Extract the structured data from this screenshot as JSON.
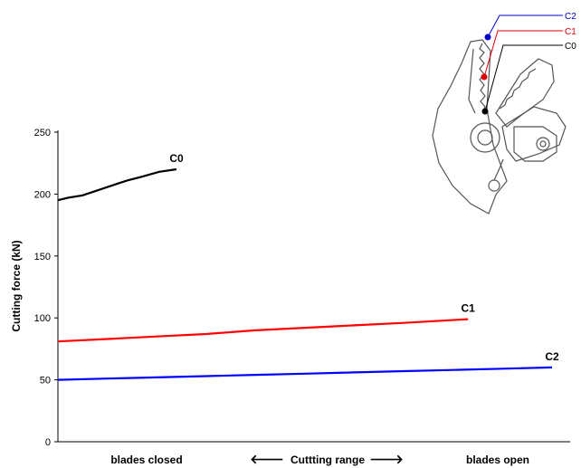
{
  "chart_data": {
    "type": "line",
    "ylabel": "Cutting force (kN)",
    "xlabel": "",
    "ylim": [
      0,
      250
    ],
    "yticks": [
      0,
      50,
      100,
      150,
      200,
      250
    ],
    "xlim": [
      0,
      1
    ],
    "grid": false,
    "legend": "none",
    "x_annotations": {
      "left": "blades closed",
      "middle": "Cuttting range",
      "right": "blades open",
      "left_arrow": "🡐",
      "right_arrow": "🡒"
    },
    "series": [
      {
        "name": "C0",
        "color": "#000000",
        "x": [
          0.0,
          0.02,
          0.05,
          0.08,
          0.11,
          0.14,
          0.17,
          0.205,
          0.24
        ],
        "values": [
          195,
          197,
          199,
          203,
          207,
          211,
          214,
          218,
          220
        ]
      },
      {
        "name": "C1",
        "color": "#ff0000",
        "x": [
          0.0,
          0.1,
          0.2,
          0.3,
          0.4,
          0.5,
          0.6,
          0.7,
          0.83
        ],
        "values": [
          81,
          83,
          85,
          87,
          90,
          92,
          94,
          96,
          99
        ]
      },
      {
        "name": "C2",
        "color": "#0000ff",
        "x": [
          0.0,
          0.1,
          0.2,
          0.3,
          0.4,
          0.5,
          0.6,
          0.7,
          0.8,
          0.9,
          1.0
        ],
        "values": [
          50,
          51,
          52,
          53,
          54,
          55,
          56,
          57,
          58,
          59,
          60
        ]
      }
    ]
  },
  "inset": {
    "labels": [
      "C2",
      "C1",
      "C0"
    ],
    "colors": [
      "#0000cc",
      "#dd0000",
      "#000000"
    ]
  }
}
